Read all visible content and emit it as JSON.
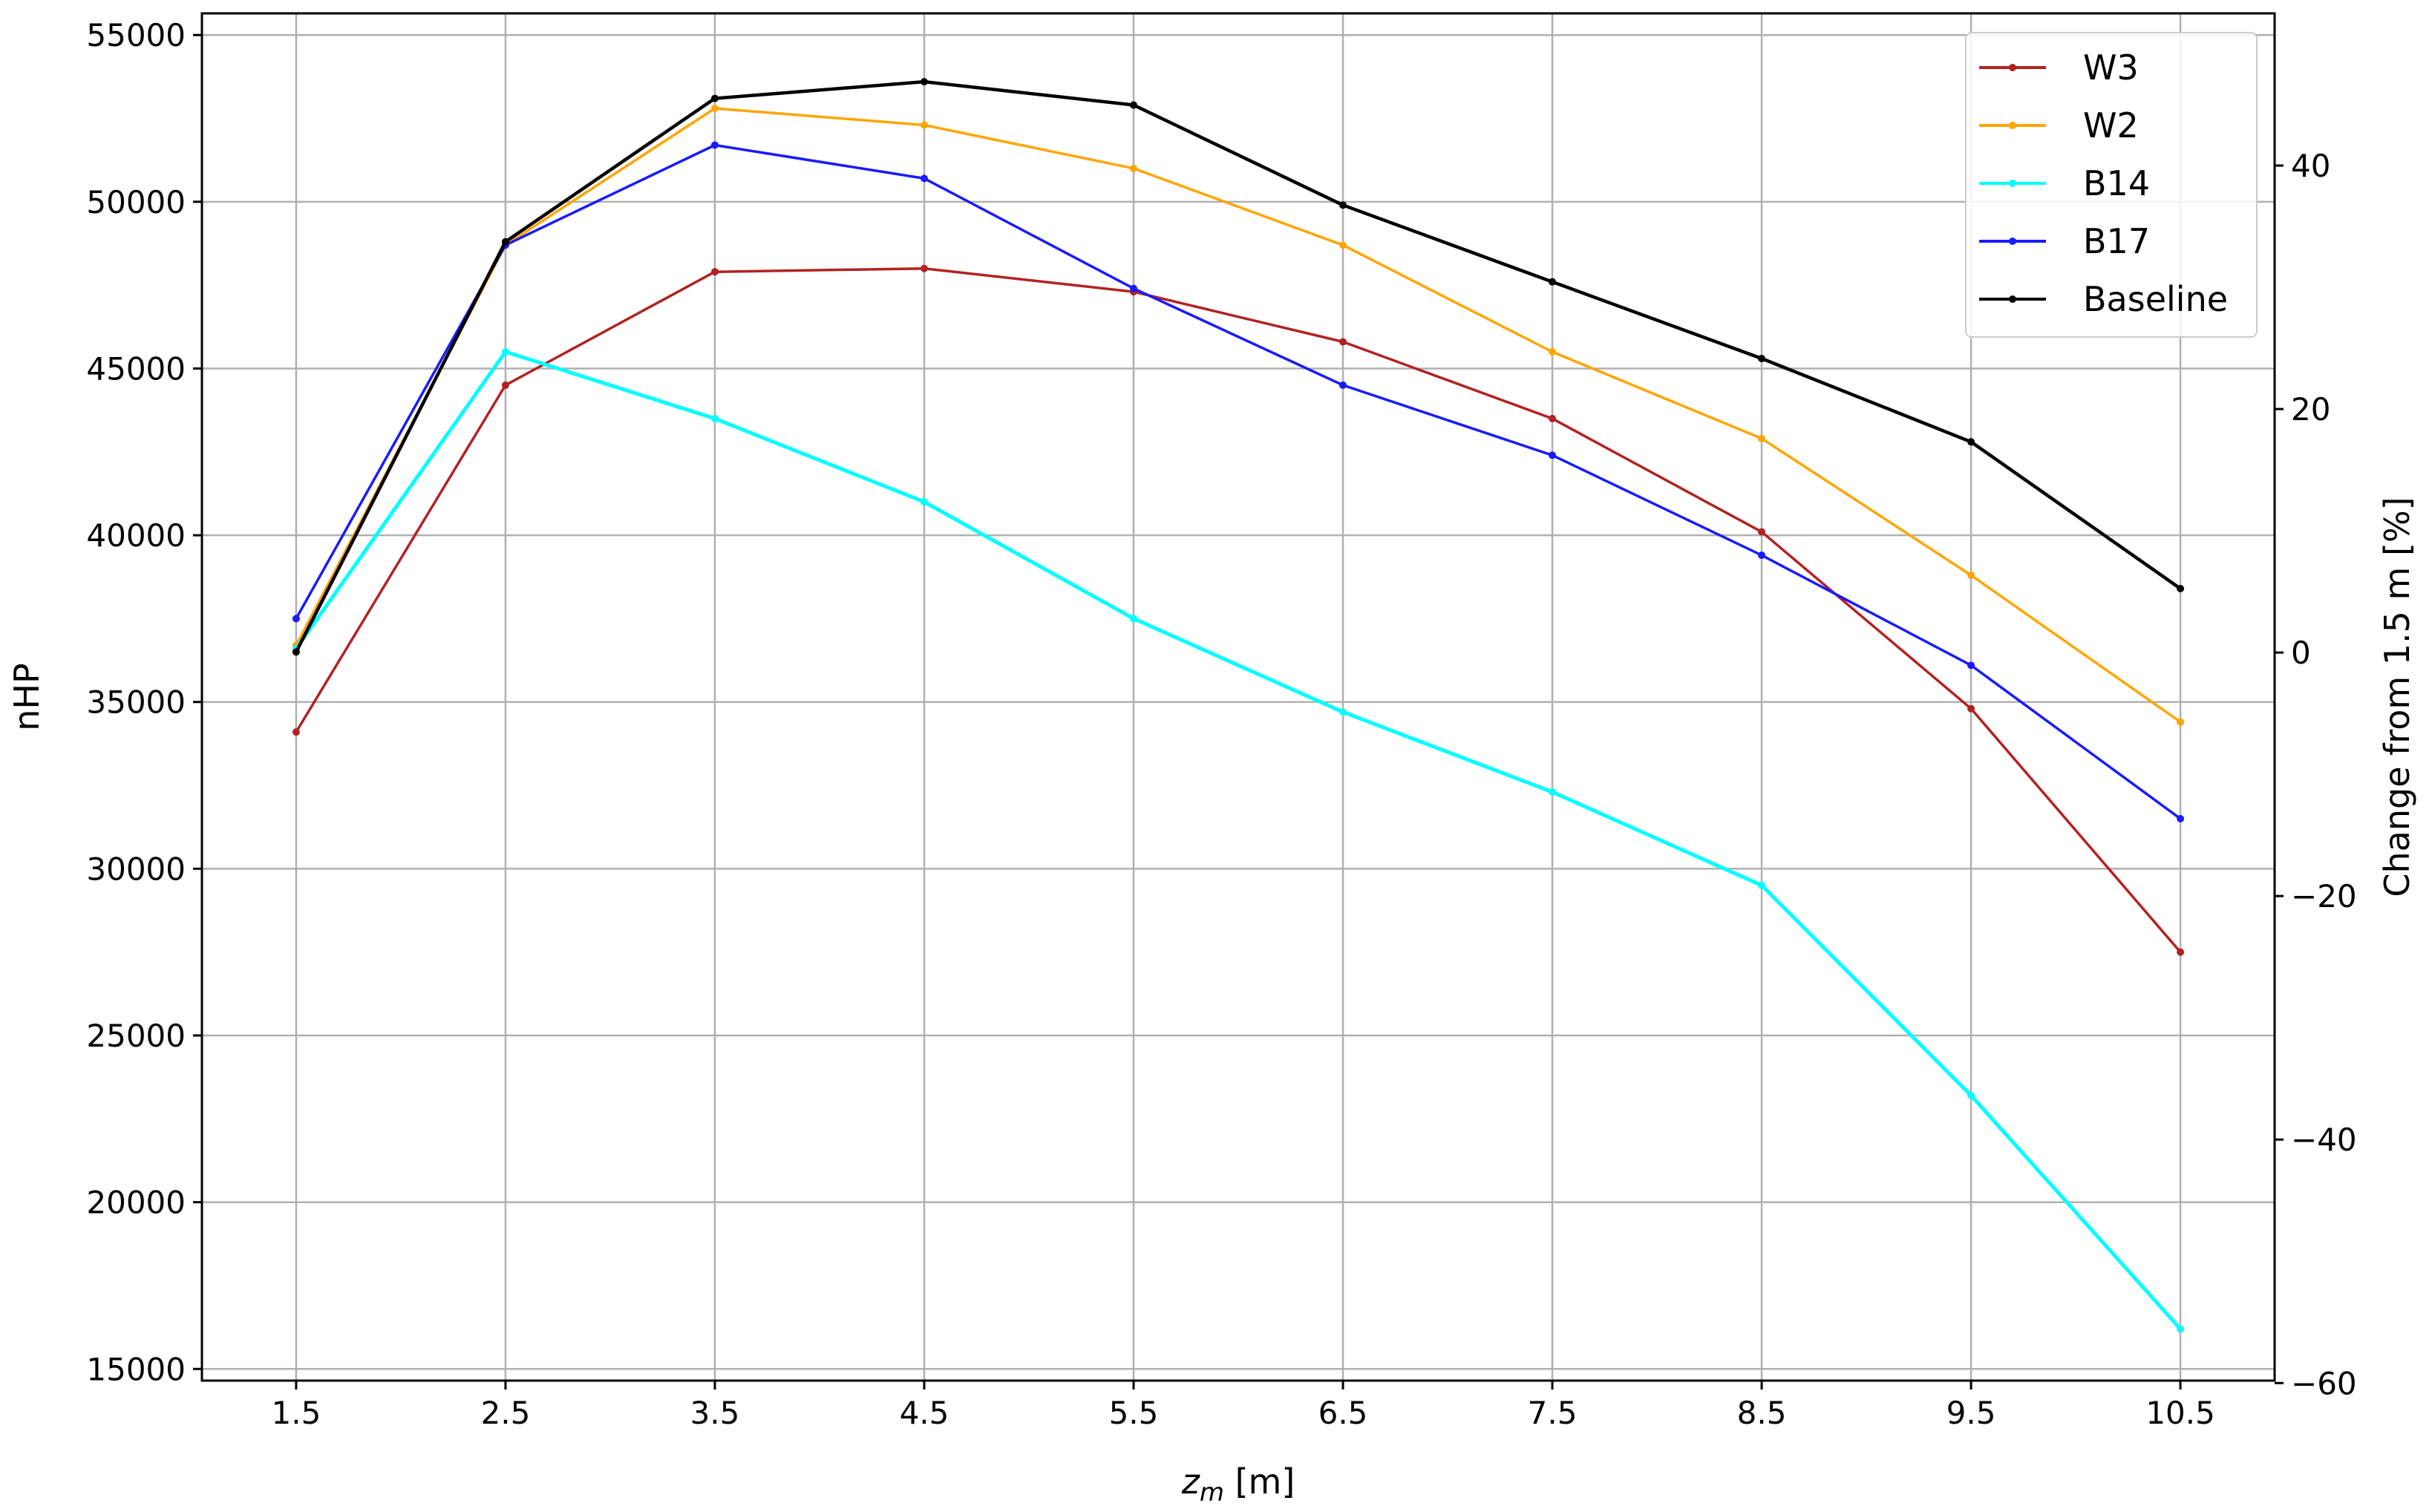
{
  "chart_data": {
    "type": "line",
    "xlabel_main": "z",
    "xlabel_sub": "m",
    "xlabel_unit": " [m]",
    "ylabel": "nHP",
    "ylabel_right": "Change from 1.5 m [%]",
    "x": [
      1.5,
      2.5,
      3.5,
      4.5,
      5.5,
      6.5,
      7.5,
      8.5,
      9.5,
      10.5
    ],
    "x_ticks": [
      "1.5",
      "2.5",
      "3.5",
      "4.5",
      "5.5",
      "6.5",
      "7.5",
      "8.5",
      "9.5",
      "10.5"
    ],
    "xlim": [
      1.05,
      10.95
    ],
    "ylim": [
      14650,
      55650
    ],
    "y_ticks": [
      "15000",
      "20000",
      "25000",
      "30000",
      "35000",
      "40000",
      "45000",
      "50000",
      "55000"
    ],
    "y_tick_values": [
      15000,
      20000,
      25000,
      30000,
      35000,
      40000,
      45000,
      50000,
      55000
    ],
    "y2lim": [
      -59.8,
      52.5
    ],
    "y2_ticks": [
      "−60",
      "−40",
      "−20",
      "0",
      "20",
      "40"
    ],
    "y2_tick_values": [
      -60,
      -40,
      -20,
      0,
      20,
      40
    ],
    "grid": true,
    "legend_position": "top-right",
    "series": [
      {
        "name": "W3",
        "color": "#b22222",
        "values": [
          34100,
          44500,
          47900,
          48000,
          47300,
          45800,
          43500,
          40100,
          34800,
          27500
        ]
      },
      {
        "name": "W2",
        "color": "#ffa500",
        "values": [
          36700,
          48700,
          52800,
          52300,
          51000,
          48700,
          45500,
          42900,
          38800,
          34400
        ]
      },
      {
        "name": "B14",
        "color": "#00ffff",
        "values": [
          36600,
          45500,
          43500,
          41000,
          37500,
          34700,
          32300,
          29500,
          23200,
          16200
        ]
      },
      {
        "name": "B17",
        "color": "#1a1aff",
        "values": [
          37500,
          48700,
          51700,
          50700,
          47400,
          44500,
          42400,
          39400,
          36100,
          31500
        ]
      },
      {
        "name": "Baseline",
        "color": "#000000",
        "values": [
          36500,
          48800,
          53100,
          53600,
          52900,
          49900,
          47600,
          45300,
          42800,
          38400
        ]
      }
    ]
  }
}
